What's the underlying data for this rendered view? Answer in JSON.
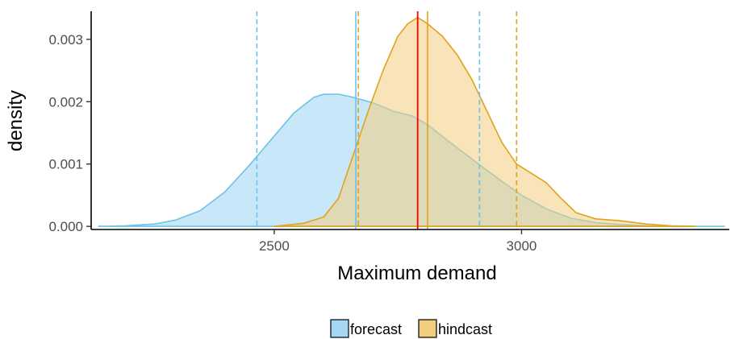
{
  "chart_data": {
    "type": "area",
    "title": "",
    "xlabel": "Maximum demand",
    "ylabel": "density",
    "xlim": [
      2130,
      3420
    ],
    "ylim": [
      -5e-05,
      0.00345
    ],
    "xticks": [
      2500,
      3000
    ],
    "xtick_labels": [
      "2500",
      "3000"
    ],
    "yticks": [
      0.0,
      0.001,
      0.002,
      0.003
    ],
    "ytick_labels": [
      "0.000",
      "0.001",
      "0.002",
      "0.003"
    ],
    "grid": false,
    "legend_position": "bottom",
    "series": [
      {
        "name": "forecast",
        "fill": "#a6d8f5",
        "line": "#6ec1e8",
        "points": [
          [
            2145,
            0.0
          ],
          [
            2200,
            1e-05
          ],
          [
            2260,
            4e-05
          ],
          [
            2300,
            0.0001
          ],
          [
            2350,
            0.00025
          ],
          [
            2400,
            0.00055
          ],
          [
            2450,
            0.00098
          ],
          [
            2500,
            0.00145
          ],
          [
            2540,
            0.00182
          ],
          [
            2580,
            0.00207
          ],
          [
            2600,
            0.00212
          ],
          [
            2630,
            0.00212
          ],
          [
            2660,
            0.00207
          ],
          [
            2700,
            0.00198
          ],
          [
            2740,
            0.00185
          ],
          [
            2780,
            0.00177
          ],
          [
            2810,
            0.00163
          ],
          [
            2850,
            0.00138
          ],
          [
            2900,
            0.00108
          ],
          [
            2950,
            0.00078
          ],
          [
            3000,
            0.0005
          ],
          [
            3050,
            0.00028
          ],
          [
            3100,
            0.00013
          ],
          [
            3150,
            6e-05
          ],
          [
            3200,
            3e-05
          ],
          [
            3260,
            1e-05
          ],
          [
            3330,
            0.0
          ],
          [
            3410,
            0.0
          ]
        ],
        "vlines": [
          {
            "x": 2465,
            "style": "dashed"
          },
          {
            "x": 2665,
            "style": "solid"
          },
          {
            "x": 2915,
            "style": "dashed"
          }
        ]
      },
      {
        "name": "hindcast",
        "fill": "#f2cd7d",
        "line": "#e0a21f",
        "points": [
          [
            2500,
            0.0
          ],
          [
            2560,
            5e-05
          ],
          [
            2600,
            0.00015
          ],
          [
            2630,
            0.00045
          ],
          [
            2660,
            0.00115
          ],
          [
            2690,
            0.00185
          ],
          [
            2720,
            0.0025
          ],
          [
            2750,
            0.00305
          ],
          [
            2770,
            0.00325
          ],
          [
            2790,
            0.00335
          ],
          [
            2810,
            0.00325
          ],
          [
            2840,
            0.00305
          ],
          [
            2870,
            0.00275
          ],
          [
            2900,
            0.00235
          ],
          [
            2930,
            0.00185
          ],
          [
            2960,
            0.00135
          ],
          [
            2990,
            0.001
          ],
          [
            3020,
            0.00085
          ],
          [
            3050,
            0.0007
          ],
          [
            3080,
            0.00045
          ],
          [
            3110,
            0.00022
          ],
          [
            3150,
            0.00012
          ],
          [
            3200,
            9e-05
          ],
          [
            3250,
            4e-05
          ],
          [
            3300,
            1e-05
          ],
          [
            3350,
            0.0
          ]
        ],
        "vlines": [
          {
            "x": 2670,
            "style": "dashed"
          },
          {
            "x": 2810,
            "style": "solid"
          },
          {
            "x": 2990,
            "style": "dashed"
          }
        ]
      }
    ],
    "reference_line": {
      "x": 2790,
      "color": "#ff0000"
    }
  }
}
